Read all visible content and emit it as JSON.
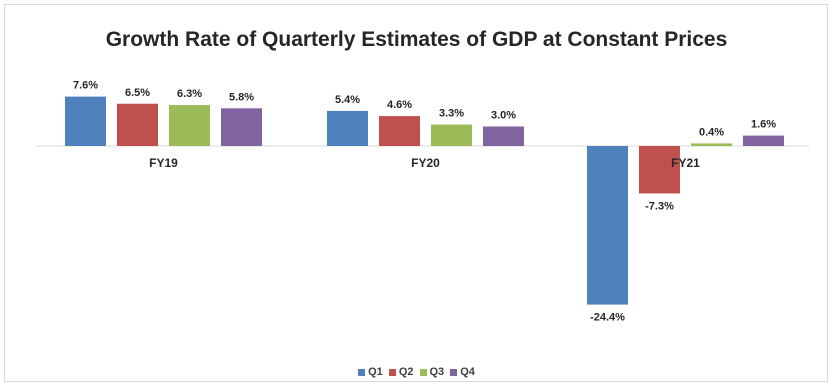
{
  "chart_data": {
    "type": "bar",
    "title": "Growth Rate of Quarterly Estimates of GDP at Constant Prices",
    "categories": [
      "FY19",
      "FY20",
      "FY21"
    ],
    "series": [
      {
        "name": "Q1",
        "color": "#4f81bd",
        "values": [
          7.6,
          5.4,
          -24.4
        ],
        "labels": [
          "7.6%",
          "5.4%",
          "-24.4%"
        ]
      },
      {
        "name": "Q2",
        "color": "#c0504d",
        "values": [
          6.5,
          4.6,
          -7.3
        ],
        "labels": [
          "6.5%",
          "4.6%",
          "-7.3%"
        ]
      },
      {
        "name": "Q3",
        "color": "#9bbb59",
        "values": [
          6.3,
          3.3,
          0.4
        ],
        "labels": [
          "6.3%",
          "3.3%",
          "0.4%"
        ]
      },
      {
        "name": "Q4",
        "color": "#8064a2",
        "values": [
          5.8,
          3.0,
          1.6
        ],
        "labels": [
          "5.8%",
          "3.0%",
          "1.6%"
        ]
      }
    ],
    "xlabel": "",
    "ylabel": "",
    "grid": false,
    "legend": "bottom",
    "value_axis_shown": false
  }
}
